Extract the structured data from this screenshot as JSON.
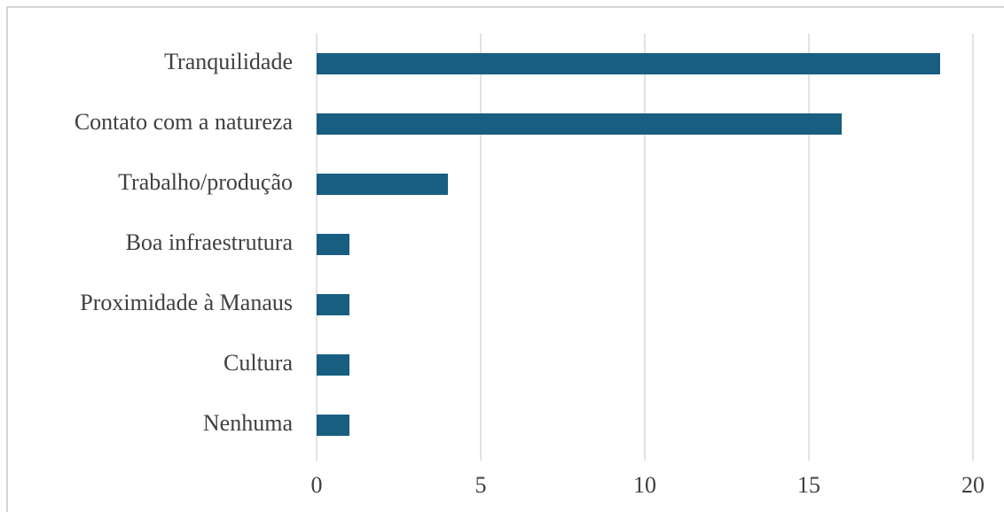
{
  "chart_data": {
    "type": "bar",
    "orientation": "horizontal",
    "categories": [
      "Tranquilidade",
      "Contato com a natureza",
      "Trabalho/produção",
      "Boa infraestrutura",
      "Proximidade à Manaus",
      "Cultura",
      "Nenhuma"
    ],
    "values": [
      19,
      16,
      4,
      1,
      1,
      1,
      1
    ],
    "color": "#175e81",
    "xlim": [
      0,
      20
    ],
    "xticks": [
      0,
      5,
      10,
      15,
      20
    ],
    "grid": true
  }
}
